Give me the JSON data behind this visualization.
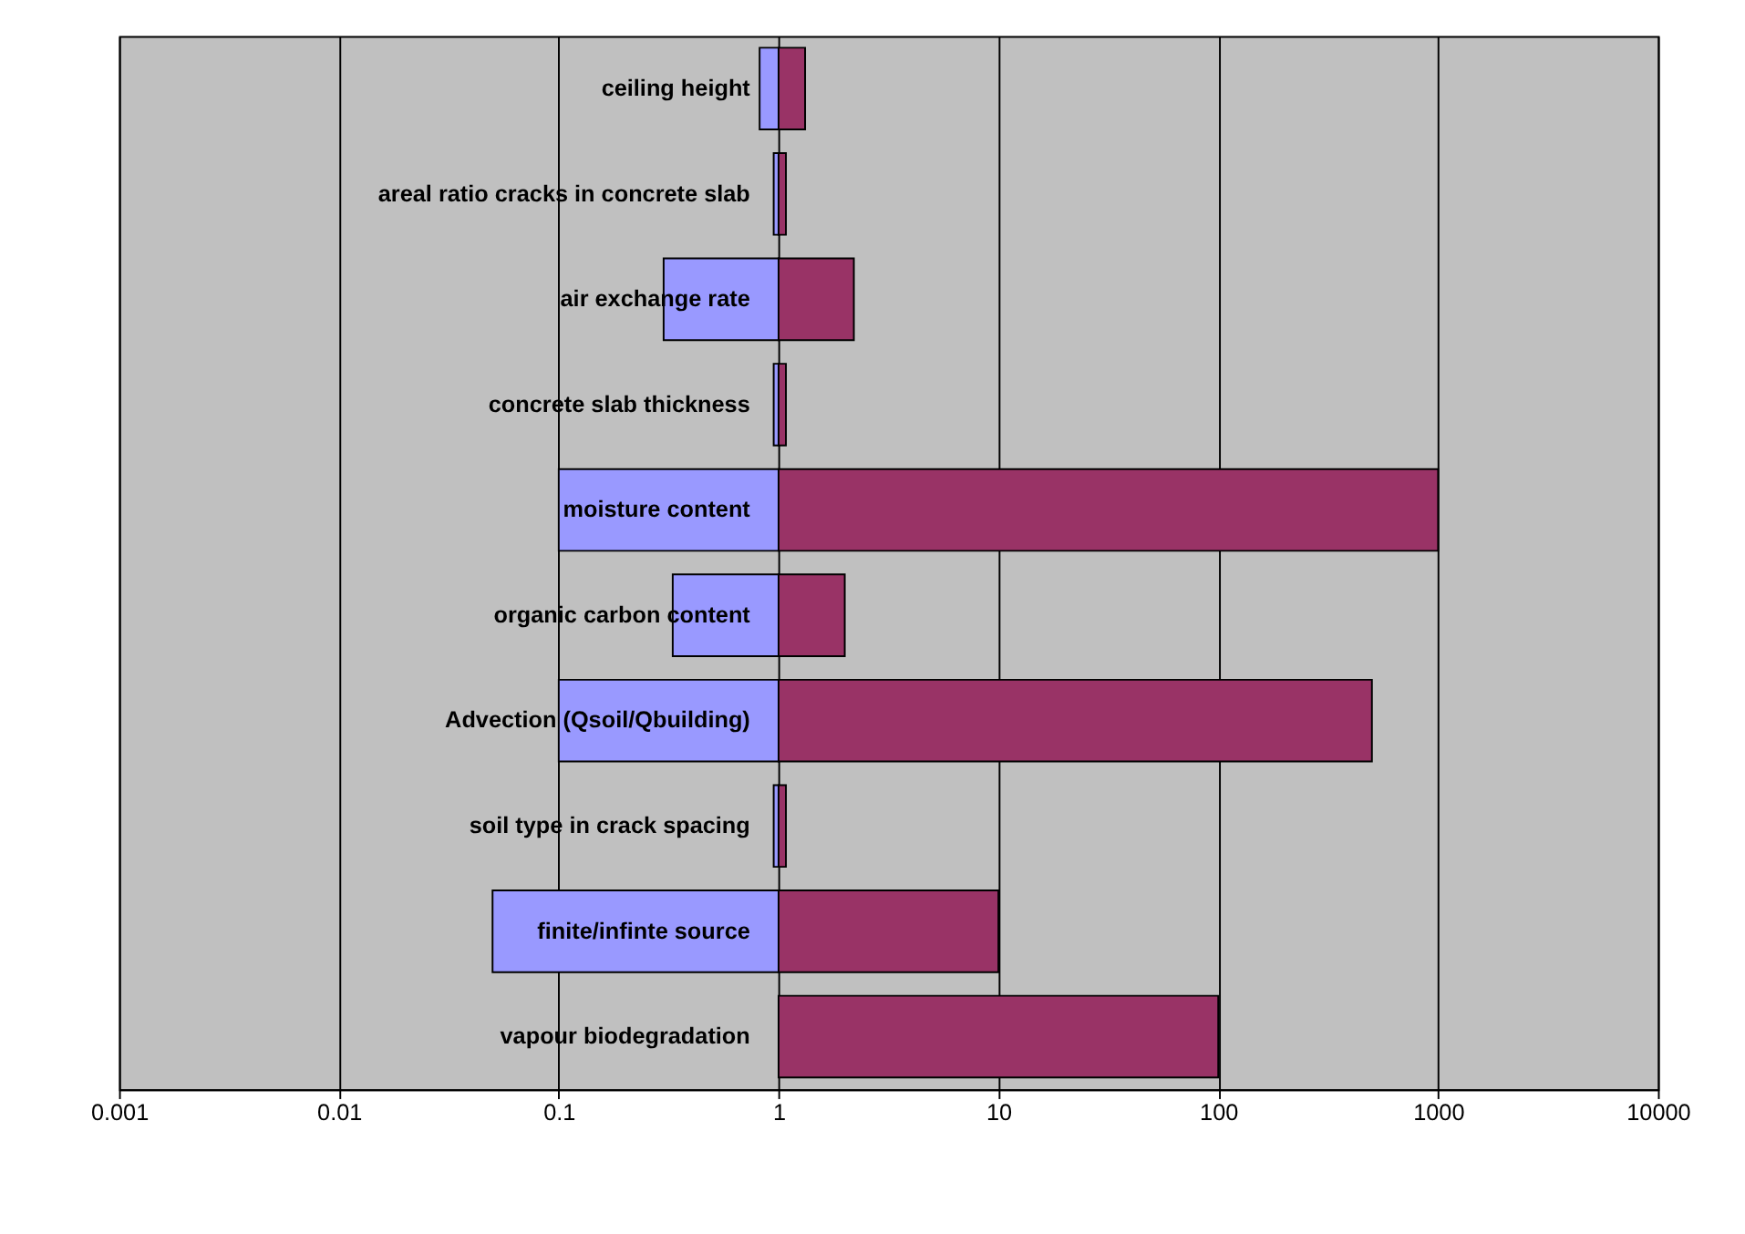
{
  "chart_data": {
    "type": "bar",
    "orientation": "horizontal",
    "categories": [
      "ceiling height",
      "areal ratio cracks in concrete slab",
      "air exchange rate",
      "concrete slab thickness",
      "moisture content",
      "organic carbon content",
      "Advection (Qsoil/Qbuilding)",
      "soil type in crack spacing",
      "finite/infinte source",
      "vapour biodegradation"
    ],
    "series": [
      {
        "color": "#9999ff",
        "base": [
          0.82,
          0.95,
          0.3,
          0.95,
          0.1,
          0.33,
          0.1,
          0.95,
          0.05,
          null
        ],
        "values": [
          0.18,
          0.05,
          0.7,
          0.05,
          0.9,
          0.67,
          0.9,
          0.05,
          0.95,
          null
        ]
      },
      {
        "color": "#993366",
        "base": [
          1,
          1,
          1,
          1,
          1,
          1,
          1,
          1,
          1,
          1
        ],
        "values": [
          0.32,
          0.08,
          1.2,
          0.08,
          999,
          1.0,
          499,
          0.08,
          9,
          99
        ]
      }
    ],
    "log": "x",
    "xlim": [
      0.001,
      10000
    ],
    "xticks": [
      0.001,
      0.01,
      0.1,
      1,
      10,
      100,
      1000,
      10000
    ],
    "grid": "x"
  }
}
